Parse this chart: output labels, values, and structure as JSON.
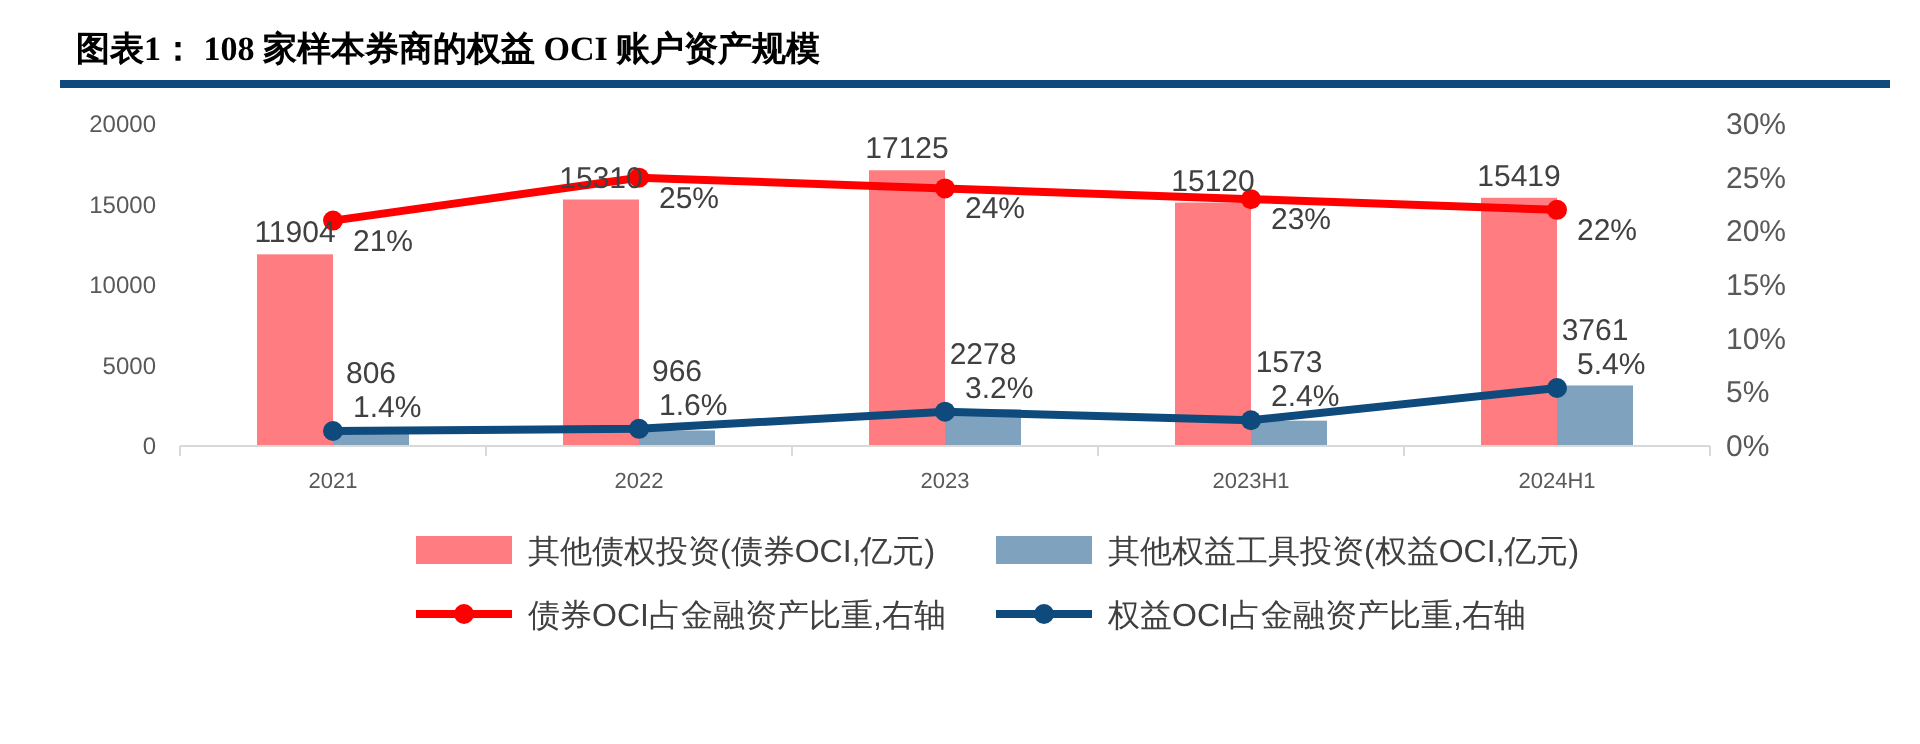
{
  "chart_data": {
    "type": "bar",
    "title": "图表1： 108 家样本券商的权益 OCI 账户资产规模",
    "categories": [
      "2021",
      "2022",
      "2023",
      "2023H1",
      "2024H1"
    ],
    "series": [
      {
        "name": "其他债权投资(债券OCI,亿元)",
        "color": "#ff7c80",
        "values": [
          11904,
          15310,
          17125,
          15120,
          15419
        ],
        "value_labels": [
          "11904",
          "15310",
          "17125",
          "15120",
          "15419"
        ]
      },
      {
        "name": "其他权益工具投资(权益OCI,亿元)",
        "color": "#7fa3bf",
        "values": [
          806,
          966,
          2278,
          1573,
          3761
        ],
        "value_labels": [
          "806",
          "966",
          "2278",
          "1573",
          "3761"
        ]
      },
      {
        "type": "line",
        "axis": "y2",
        "name": "债券OCI占金融资产比重,右轴",
        "color": "#ff0000",
        "values": [
          21,
          25,
          24,
          23,
          22
        ],
        "value_labels": [
          "21%",
          "25%",
          "24%",
          "23%",
          "22%"
        ]
      },
      {
        "type": "line",
        "axis": "y2",
        "name": "权益OCI占金融资产比重,右轴",
        "color": "#0e4a7c",
        "values": [
          1.4,
          1.6,
          3.2,
          2.4,
          5.4
        ],
        "value_labels": [
          "1.4%",
          "1.6%",
          "3.2%",
          "2.4%",
          "5.4%"
        ]
      }
    ],
    "ylim": [
      0,
      20000
    ],
    "yticks": [
      0,
      5000,
      10000,
      15000,
      20000
    ],
    "y2lim": [
      0,
      30
    ],
    "y2ticks": [
      {
        "value": 0,
        "label": "0%"
      },
      {
        "value": 5,
        "label": "5%"
      },
      {
        "value": 10,
        "label": "10%"
      },
      {
        "value": 15,
        "label": "15%"
      },
      {
        "value": 20,
        "label": "20%"
      },
      {
        "value": 25,
        "label": "25%"
      },
      {
        "value": 30,
        "label": "30%"
      }
    ],
    "legend": "bottom",
    "marker": "circle"
  }
}
